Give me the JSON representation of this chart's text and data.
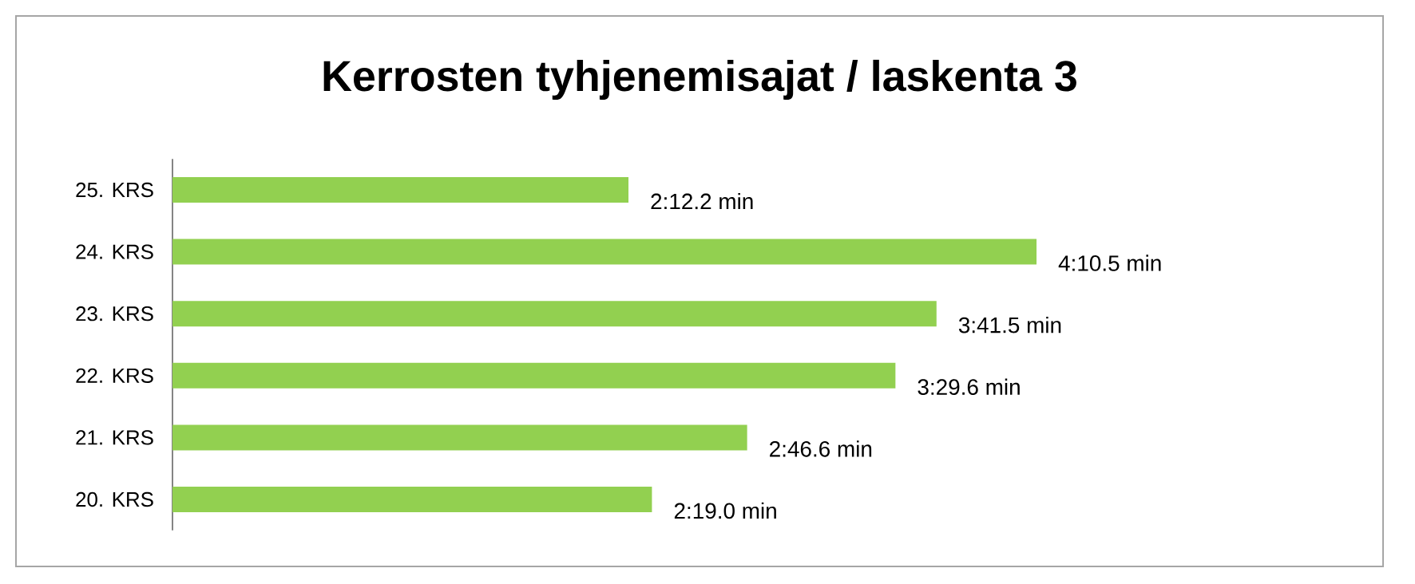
{
  "chart_data": {
    "type": "bar",
    "orientation": "horizontal",
    "title": "Kerrosten tyhjenemisajat / laskenta 3",
    "categories": [
      "25. KRS",
      "24. KRS",
      "23. KRS",
      "22. KRS",
      "21. KRS",
      "20. KRS"
    ],
    "values": [
      2.2033,
      4.175,
      3.6917,
      3.4933,
      2.7767,
      2.3167
    ],
    "value_labels": [
      "2:12.2 min",
      "4:10.5 min",
      "3:41.5 min",
      "3:29.6 min",
      "2:46.6 min",
      "2:19.0 min"
    ],
    "color": "#92d050"
  }
}
